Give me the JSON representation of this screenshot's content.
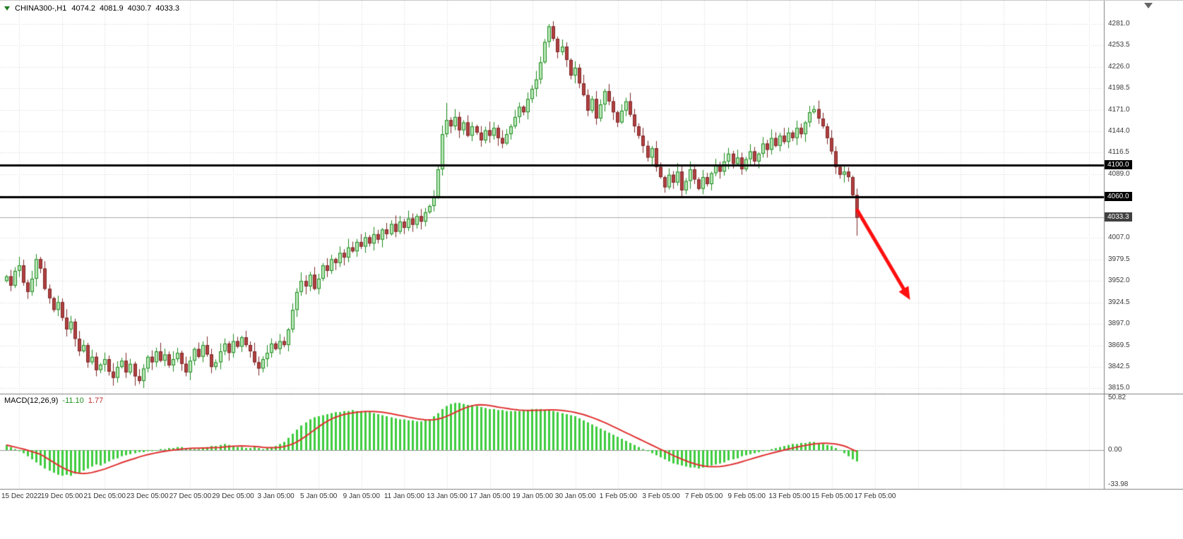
{
  "header": {
    "symbol": "CHINA300-,H1",
    "open": "4074.2",
    "high": "4081.9",
    "low": "4030.7",
    "close": "4033.3"
  },
  "indicator": {
    "label": "MACD(12,26,9)",
    "main_value": "-11.10",
    "signal_value": "1.77"
  },
  "colors": {
    "up_fill": "#b9e8b9",
    "up_border": "#1c8a1c",
    "down_fill": "#b04040",
    "down_border": "#7e2828",
    "macd_hist": "#3ecc3e",
    "macd_signal": "#e03232",
    "hline": "#000000",
    "current_line": "#ababab",
    "grid": "#d6d6d6",
    "separator": "#808080",
    "zero_line": "#9a9a9a",
    "arrow": "#ff0f0f",
    "axis_text": "#3a3a3a",
    "tag_bg": "#000000",
    "current_tag_bg": "#404040"
  },
  "chart_data": {
    "type": "candlestick",
    "title": "CHINA300 H1 with MACD(12,26,9)",
    "symbol": "CHINA300",
    "timeframe": "H1",
    "ohlc_display": {
      "open": 4074.2,
      "high": 4081.9,
      "low": 4030.7,
      "close": 4033.3
    },
    "y_axis": {
      "labels": [
        4281.0,
        4253.5,
        4226.0,
        4198.5,
        4171.0,
        4144.0,
        4116.5,
        4089.0,
        4007.0,
        3979.5,
        3952.0,
        3924.5,
        3897.0,
        3869.5,
        3842.5,
        3815.0
      ],
      "visible_min": 3815.0,
      "visible_max": 4281.0
    },
    "x_axis": {
      "labels": [
        "15 Dec 2022",
        "19 Dec 05:00",
        "21 Dec 05:00",
        "23 Dec 05:00",
        "27 Dec 05:00",
        "29 Dec 05:00",
        "3 Jan 05:00",
        "5 Jan 05:00",
        "9 Jan 05:00",
        "11 Jan 05:00",
        "13 Jan 05:00",
        "17 Jan 05:00",
        "19 Jan 05:00",
        "30 Jan 05:00",
        "1 Feb 05:00",
        "3 Feb 05:00",
        "7 Feb 05:00",
        "9 Feb 05:00",
        "13 Feb 05:00",
        "15 Feb 05:00",
        "17 Feb 05:00"
      ]
    },
    "horizontal_lines": [
      4100.0,
      4060.0
    ],
    "current_price": 4033.3,
    "candles": {
      "first_open": 3952,
      "closes": [
        3958,
        3946,
        3965,
        3972,
        3950,
        3938,
        3955,
        3980,
        3968,
        3942,
        3930,
        3915,
        3925,
        3905,
        3890,
        3900,
        3878,
        3862,
        3870,
        3848,
        3855,
        3838,
        3845,
        3852,
        3836,
        3828,
        3842,
        3850,
        3835,
        3846,
        3830,
        3824,
        3840,
        3855,
        3848,
        3862,
        3850,
        3858,
        3844,
        3852,
        3860,
        3846,
        3835,
        3850,
        3865,
        3855,
        3870,
        3858,
        3842,
        3848,
        3862,
        3872,
        3860,
        3875,
        3868,
        3880,
        3870,
        3862,
        3848,
        3840,
        3852,
        3860,
        3872,
        3865,
        3875,
        3870,
        3890,
        3915,
        3938,
        3952,
        3945,
        3960,
        3942,
        3955,
        3972,
        3965,
        3980,
        3975,
        3988,
        3982,
        3995,
        3990,
        4002,
        3996,
        4008,
        4000,
        4012,
        4005,
        4018,
        4012,
        4025,
        4015,
        4028,
        4020,
        4032,
        4024,
        4035,
        4028,
        4040,
        4048,
        4060,
        4095,
        4140,
        4158,
        4150,
        4162,
        4145,
        4155,
        4138,
        4150,
        4142,
        4132,
        4145,
        4138,
        4148,
        4135,
        4128,
        4140,
        4150,
        4162,
        4175,
        4168,
        4185,
        4198,
        4210,
        4232,
        4258,
        4278,
        4262,
        4245,
        4252,
        4235,
        4215,
        4225,
        4205,
        4190,
        4170,
        4185,
        4160,
        4178,
        4195,
        4182,
        4168,
        4155,
        4170,
        4182,
        4165,
        4150,
        4138,
        4125,
        4110,
        4122,
        4098,
        4085,
        4072,
        4088,
        4078,
        4092,
        4068,
        4080,
        4095,
        4082,
        4070,
        4085,
        4076,
        4090,
        4100,
        4092,
        4105,
        4115,
        4102,
        4110,
        4095,
        4108,
        4118,
        4105,
        4115,
        4128,
        4120,
        4135,
        4125,
        4138,
        4130,
        4142,
        4135,
        4148,
        4140,
        4155,
        4168,
        4172,
        4160,
        4150,
        4135,
        4118,
        4098,
        4088,
        4092,
        4085,
        4062,
        4033
      ],
      "wick_overrides": [
        {
          "i": 30,
          "low": 3818
        },
        {
          "i": 103,
          "high": 4180
        },
        {
          "i": 127,
          "high": 4281
        },
        {
          "i": 199,
          "low": 4010
        }
      ]
    },
    "macd": {
      "params": "12,26,9",
      "axis_labels": [
        50.82,
        0,
        -33.98
      ],
      "main_value": -11.1,
      "signal_value": 1.77,
      "histogram": [
        5,
        3,
        1,
        -1,
        -3,
        -6,
        -9,
        -12,
        -15,
        -18,
        -20,
        -22,
        -24,
        -25,
        -24,
        -25,
        -23,
        -22,
        -20,
        -18,
        -16,
        -14,
        -15,
        -13,
        -11,
        -9,
        -8,
        -6,
        -5,
        -4,
        -3,
        -2,
        -2,
        -1,
        -1,
        0,
        1,
        1,
        2,
        2,
        3,
        3,
        2,
        2,
        1,
        1,
        2,
        3,
        4,
        4,
        5,
        6,
        5,
        4,
        3,
        3,
        2,
        2,
        3,
        2,
        1,
        2,
        3,
        4,
        6,
        8,
        12,
        16,
        20,
        24,
        27,
        30,
        32,
        33,
        34,
        35,
        36,
        37,
        37,
        38,
        38,
        39,
        38,
        38,
        37,
        37,
        36,
        35,
        34,
        33,
        32,
        31,
        30,
        30,
        29,
        29,
        28,
        28,
        29,
        30,
        33,
        36,
        40,
        43,
        45,
        46,
        46,
        45,
        44,
        44,
        43,
        42,
        41,
        40,
        40,
        39,
        39,
        38,
        38,
        38,
        38,
        39,
        39,
        40,
        40,
        40,
        39,
        39,
        38,
        37,
        36,
        35,
        34,
        33,
        31,
        29,
        27,
        25,
        23,
        21,
        19,
        17,
        15,
        13,
        11,
        9,
        7,
        5,
        3,
        1,
        -1,
        -3,
        -5,
        -7,
        -9,
        -11,
        -13,
        -14,
        -15,
        -16,
        -17,
        -17,
        -18,
        -17,
        -16,
        -15,
        -14,
        -13,
        -12,
        -10,
        -9,
        -8,
        -6,
        -5,
        -4,
        -3,
        -2,
        -1,
        0,
        1,
        2,
        3,
        4,
        5,
        6,
        6,
        7,
        7,
        8,
        8,
        7,
        6,
        5,
        4,
        2,
        0,
        -3,
        -6,
        -9,
        -11
      ]
    },
    "annotations": [
      {
        "type": "arrow",
        "color": "#ff0f0f",
        "from": {
          "bar": 199,
          "price": 4044
        },
        "to": {
          "bar": 211.5,
          "price": 3928
        }
      }
    ]
  }
}
